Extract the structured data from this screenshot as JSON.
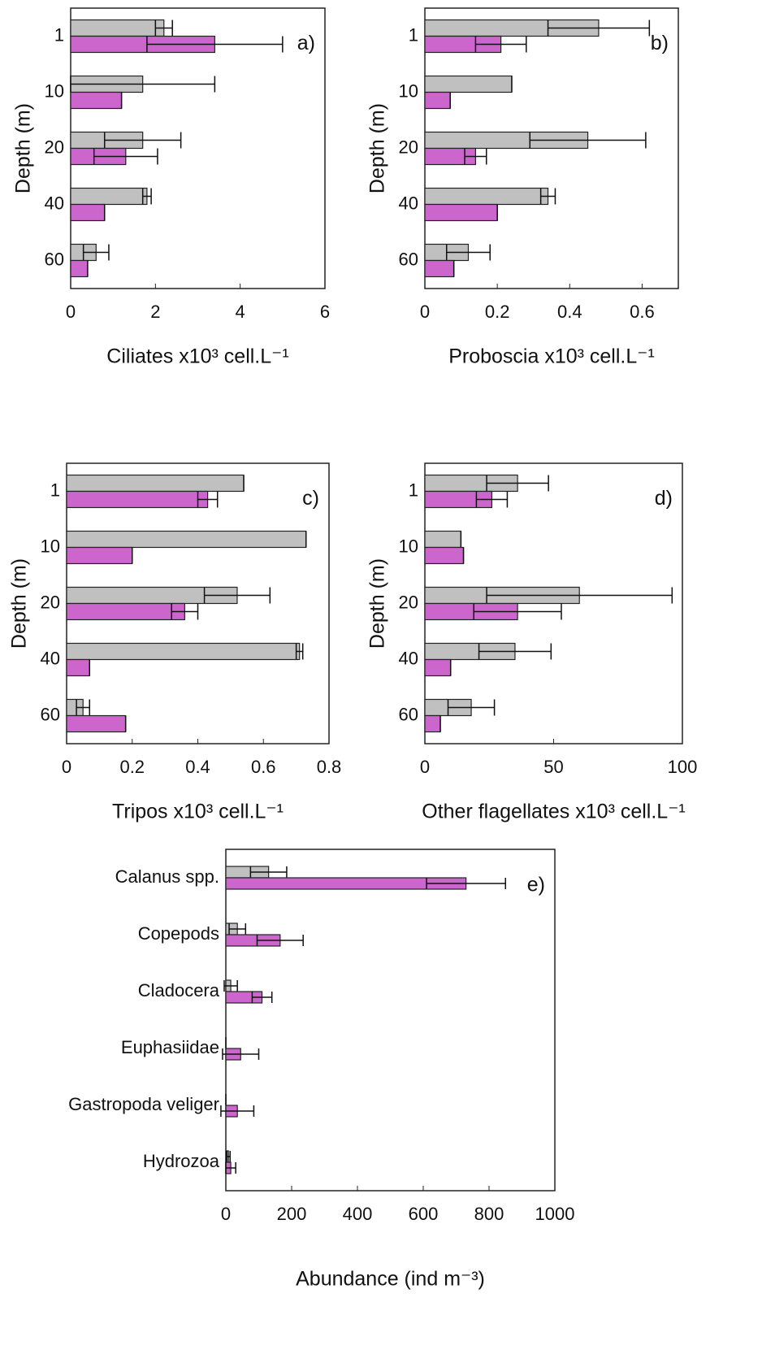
{
  "chart_data": [
    {
      "type": "bar",
      "orientation": "horizontal",
      "panel_label": "a)",
      "categories": [
        "1",
        "10",
        "20",
        "40",
        "60"
      ],
      "series": [
        {
          "color": "#c0c0c0",
          "values": [
            2.2,
            1.7,
            1.7,
            1.8,
            0.6
          ],
          "errors": [
            0.2,
            1.7,
            0.9,
            0.1,
            0.3
          ]
        },
        {
          "color": "#cc66cc",
          "values": [
            3.4,
            1.2,
            1.3,
            0.8,
            0.4
          ],
          "errors": [
            1.6,
            0,
            0.75,
            0,
            0
          ]
        }
      ],
      "xlim": [
        0,
        6
      ],
      "xticks": [
        0,
        2,
        4,
        6
      ],
      "xlabel": "Ciliates x10³ cell.L⁻¹",
      "ylabel": "Depth (m)"
    },
    {
      "type": "bar",
      "orientation": "horizontal",
      "panel_label": "b)",
      "categories": [
        "1",
        "10",
        "20",
        "40",
        "60"
      ],
      "series": [
        {
          "color": "#c0c0c0",
          "values": [
            0.48,
            0.24,
            0.45,
            0.34,
            0.12
          ],
          "errors": [
            0.14,
            0,
            0.16,
            0.02,
            0.06
          ]
        },
        {
          "color": "#cc66cc",
          "values": [
            0.21,
            0.07,
            0.14,
            0.2,
            0.08
          ],
          "errors": [
            0.07,
            0,
            0.03,
            0,
            0
          ]
        }
      ],
      "xlim": [
        0,
        0.7
      ],
      "xticks": [
        0,
        0.2,
        0.4,
        0.6
      ],
      "xlabel": "Proboscia x10³ cell.L⁻¹",
      "ylabel": "Depth (m)"
    },
    {
      "type": "bar",
      "orientation": "horizontal",
      "panel_label": "c)",
      "categories": [
        "1",
        "10",
        "20",
        "40",
        "60"
      ],
      "series": [
        {
          "color": "#c0c0c0",
          "values": [
            0.54,
            0.73,
            0.52,
            0.71,
            0.05
          ],
          "errors": [
            0,
            0,
            0.1,
            0.01,
            0.02
          ]
        },
        {
          "color": "#cc66cc",
          "values": [
            0.43,
            0.2,
            0.36,
            0.07,
            0.18
          ],
          "errors": [
            0.03,
            0,
            0.04,
            0,
            0
          ]
        }
      ],
      "xlim": [
        0,
        0.8
      ],
      "xticks": [
        0,
        0.2,
        0.4,
        0.6,
        0.8
      ],
      "xlabel": "Tripos x10³ cell.L⁻¹",
      "ylabel": "Depth (m)"
    },
    {
      "type": "bar",
      "orientation": "horizontal",
      "panel_label": "d)",
      "categories": [
        "1",
        "10",
        "20",
        "40",
        "60"
      ],
      "series": [
        {
          "color": "#c0c0c0",
          "values": [
            36,
            14,
            60,
            35,
            18
          ],
          "errors": [
            12,
            0,
            36,
            14,
            9
          ]
        },
        {
          "color": "#cc66cc",
          "values": [
            26,
            15,
            36,
            10,
            6
          ],
          "errors": [
            6,
            0,
            17,
            0,
            0
          ]
        }
      ],
      "xlim": [
        0,
        100
      ],
      "xticks": [
        0,
        50,
        100
      ],
      "xlabel": "Other flagellates x10³ cell.L⁻¹",
      "ylabel": "Depth (m)"
    },
    {
      "type": "bar",
      "orientation": "horizontal",
      "panel_label": "e)",
      "categories": [
        "Calanus spp.",
        "Copepods",
        "Cladocera",
        "Euphasiidae",
        "Gastropoda veliger",
        "Hydrozoa"
      ],
      "series": [
        {
          "color": "#c0c0c0",
          "values": [
            130,
            35,
            15,
            0,
            0,
            8
          ],
          "errors": [
            55,
            25,
            20,
            0,
            0,
            5
          ]
        },
        {
          "color": "#cc66cc",
          "values": [
            730,
            165,
            110,
            45,
            35,
            15
          ],
          "errors": [
            120,
            70,
            30,
            55,
            50,
            15
          ]
        }
      ],
      "xlim": [
        0,
        1000
      ],
      "xticks": [
        0,
        200,
        400,
        600,
        800,
        1000
      ],
      "xlabel": "Abundance (ind m⁻³)"
    }
  ]
}
